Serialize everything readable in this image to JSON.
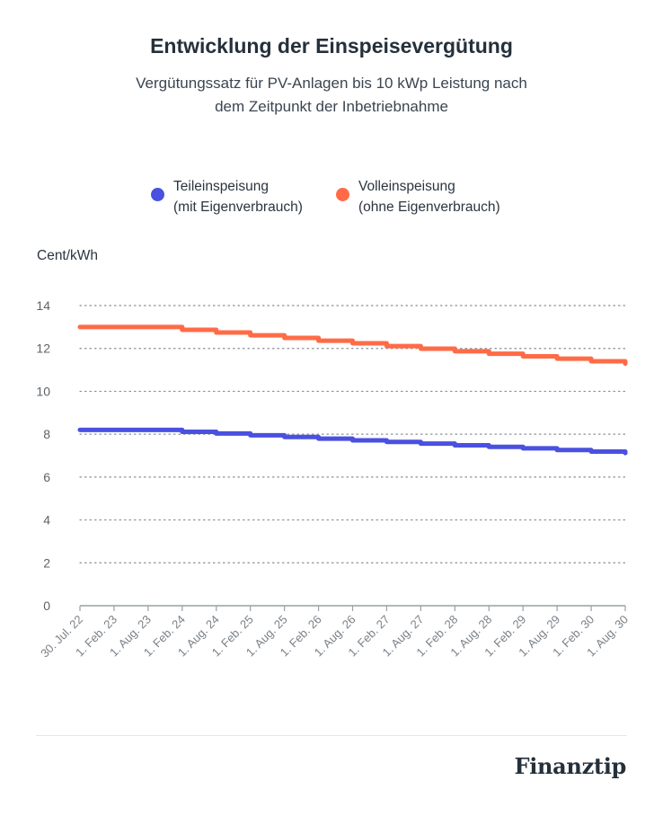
{
  "chart_data": {
    "type": "line",
    "title": "Entwicklung der Einspeisevergütung",
    "subtitle_line1": "Vergütungssatz für PV-Anlagen bis 10 kWp Leistung nach",
    "subtitle_line2": "dem Zeitpunkt der Inbetriebnahme",
    "ylabel": "Cent/kWh",
    "ylim": [
      0,
      14
    ],
    "yticks": [
      0,
      2,
      4,
      6,
      8,
      10,
      12,
      14
    ],
    "grid": true,
    "categories": [
      "30. Jul. 22",
      "1. Feb. 23",
      "1. Aug. 23",
      "1. Feb. 24",
      "1. Aug. 24",
      "1. Feb. 25",
      "1. Aug. 25",
      "1. Feb. 26",
      "1. Aug. 26",
      "1. Feb. 27",
      "1. Aug. 27",
      "1. Feb. 28",
      "1. Aug. 28",
      "1. Feb. 29",
      "1. Aug. 29",
      "1. Feb. 30",
      "1. Aug. 30"
    ],
    "series": [
      {
        "name": "Teileinspeisung",
        "name_line2": "(mit Eigenverbrauch)",
        "color": "#4a50e0",
        "values": [
          8.2,
          8.2,
          8.2,
          8.11,
          8.03,
          7.95,
          7.87,
          7.79,
          7.71,
          7.64,
          7.56,
          7.48,
          7.41,
          7.34,
          7.26,
          7.19,
          7.12
        ]
      },
      {
        "name": "Volleinspeisung",
        "name_line2": "(ohne Eigenverbrauch)",
        "color": "#ff6b47",
        "values": [
          13.0,
          13.0,
          13.0,
          12.87,
          12.74,
          12.61,
          12.49,
          12.36,
          12.24,
          12.11,
          11.99,
          11.87,
          11.75,
          11.63,
          11.52,
          11.4,
          11.29
        ]
      }
    ]
  },
  "brand": {
    "logo": "Finanztip"
  }
}
